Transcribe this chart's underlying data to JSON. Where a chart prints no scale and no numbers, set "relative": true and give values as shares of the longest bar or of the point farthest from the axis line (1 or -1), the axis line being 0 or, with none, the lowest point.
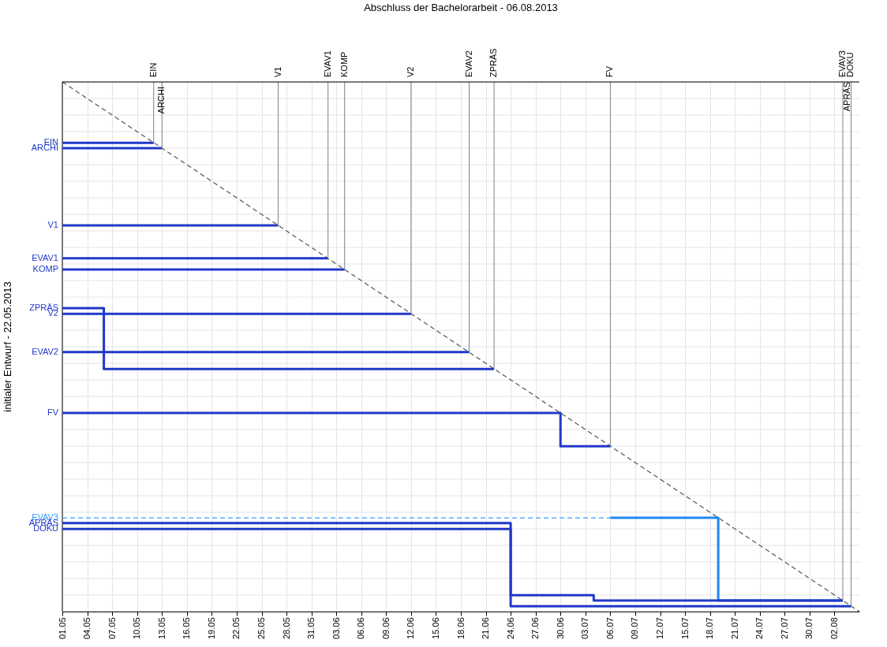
{
  "chart_data": {
    "type": "step",
    "title": "Abschluss der Bachelorarbeit - 06.08.2013",
    "ylabel": "initialer Entwurf - 22.05.2013",
    "relative": true,
    "xlim": [
      "2013-05-01",
      "2013-08-05"
    ],
    "xticks": [
      {
        "value": "2013-05-01",
        "label": "01.05"
      },
      {
        "value": "2013-05-04",
        "label": "04.05"
      },
      {
        "value": "2013-05-07",
        "label": "07.05"
      },
      {
        "value": "2013-05-10",
        "label": "10.05"
      },
      {
        "value": "2013-05-13",
        "label": "13.05"
      },
      {
        "value": "2013-05-16",
        "label": "16.05"
      },
      {
        "value": "2013-05-19",
        "label": "19.05"
      },
      {
        "value": "2013-05-22",
        "label": "22.05"
      },
      {
        "value": "2013-05-25",
        "label": "25.05"
      },
      {
        "value": "2013-05-28",
        "label": "28.05"
      },
      {
        "value": "2013-05-31",
        "label": "31.05"
      },
      {
        "value": "2013-06-03",
        "label": "03.06"
      },
      {
        "value": "2013-06-06",
        "label": "06.06"
      },
      {
        "value": "2013-06-09",
        "label": "09.06"
      },
      {
        "value": "2013-06-12",
        "label": "12.06"
      },
      {
        "value": "2013-06-15",
        "label": "15.06"
      },
      {
        "value": "2013-06-18",
        "label": "18.06"
      },
      {
        "value": "2013-06-21",
        "label": "21.06"
      },
      {
        "value": "2013-06-24",
        "label": "24.06"
      },
      {
        "value": "2013-06-27",
        "label": "27.06"
      },
      {
        "value": "2013-06-30",
        "label": "30.06"
      },
      {
        "value": "2013-07-03",
        "label": "03.07"
      },
      {
        "value": "2013-07-06",
        "label": "06.07"
      },
      {
        "value": "2013-07-09",
        "label": "09.07"
      },
      {
        "value": "2013-07-12",
        "label": "12.07"
      },
      {
        "value": "2013-07-15",
        "label": "15.07"
      },
      {
        "value": "2013-07-18",
        "label": "18.07"
      },
      {
        "value": "2013-07-21",
        "label": "21.07"
      },
      {
        "value": "2013-07-24",
        "label": "24.07"
      },
      {
        "value": "2013-07-27",
        "label": "27.07"
      },
      {
        "value": "2013-07-30",
        "label": "30.07"
      },
      {
        "value": "2013-08-02",
        "label": "02.08"
      }
    ],
    "ref_lines": [
      {
        "axis": "x",
        "value": "2013-05-12",
        "label": "EIN",
        "color": "#808080"
      },
      {
        "axis": "x",
        "value": "2013-05-13",
        "label": "ARCHI",
        "color": "#808080"
      },
      {
        "axis": "x",
        "value": "2013-05-27",
        "label": "V1",
        "color": "#808080"
      },
      {
        "axis": "x",
        "value": "2013-06-02",
        "label": "EVAV1",
        "color": "#808080"
      },
      {
        "axis": "x",
        "value": "2013-06-04",
        "label": "KOMP",
        "color": "#808080"
      },
      {
        "axis": "x",
        "value": "2013-06-12",
        "label": "V2",
        "color": "#808080"
      },
      {
        "axis": "x",
        "value": "2013-06-19",
        "label": "EVAV2",
        "color": "#808080"
      },
      {
        "axis": "x",
        "value": "2013-06-22",
        "label": "ZPRÄS",
        "color": "#808080"
      },
      {
        "axis": "x",
        "value": "2013-07-06",
        "label": "FV",
        "color": "#808080"
      },
      {
        "axis": "x",
        "value": "2013-08-03",
        "label": "EVAV3",
        "color": "#808080"
      },
      {
        "axis": "x",
        "value": "2013-08-04",
        "label": "DOKU",
        "color": "#808080"
      }
    ],
    "annotations": [
      {
        "text": "APRÄS",
        "x": "2013-08-03",
        "y": 1
      }
    ],
    "grid": true,
    "series": [
      {
        "type": "line",
        "line_style": "dashed",
        "color": "#555555",
        "x": [
          "2013-05-01",
          "2013-08-05"
        ],
        "values": [
          1,
          0
        ]
      },
      {
        "name": "EIN",
        "color": "#2038c8",
        "x": [
          "2013-05-01",
          "2013-05-12"
        ],
        "values": [
          0.885,
          0.885
        ]
      },
      {
        "name": "ARCHI",
        "color": "#2038c8",
        "x": [
          "2013-05-01",
          "2013-05-13"
        ],
        "values": [
          0.875,
          0.875
        ]
      },
      {
        "name": "V1",
        "color": "#2038c8",
        "x": [
          "2013-05-01",
          "2013-05-27"
        ],
        "values": [
          0.729,
          0.729
        ]
      },
      {
        "name": "EVAV1",
        "color": "#2038c8",
        "x": [
          "2013-05-01",
          "2013-06-02"
        ],
        "values": [
          0.667,
          0.667
        ]
      },
      {
        "name": "KOMP",
        "color": "#2038c8",
        "x": [
          "2013-05-01",
          "2013-06-04"
        ],
        "values": [
          0.646,
          0.646
        ]
      },
      {
        "name": "ZPRÄS",
        "color": "#2038c8",
        "x": [
          "2013-05-01",
          "2013-05-06",
          "2013-06-22"
        ],
        "values": [
          0.573,
          0.458,
          0.458
        ]
      },
      {
        "name": "V2",
        "color": "#2038c8",
        "x": [
          "2013-05-01",
          "2013-06-12"
        ],
        "values": [
          0.562,
          0.562
        ]
      },
      {
        "name": "EVAV2",
        "color": "#2038c8",
        "x": [
          "2013-05-01",
          "2013-06-19"
        ],
        "values": [
          0.49,
          0.49
        ]
      },
      {
        "name": "FV",
        "color": "#2038c8",
        "x": [
          "2013-05-01",
          "2013-06-30",
          "2013-07-06"
        ],
        "values": [
          0.375,
          0.312,
          0.312
        ]
      },
      {
        "name": "EVAV3",
        "line_style": "dashed",
        "color": "#3399ff",
        "x": [
          "2013-05-01",
          "2013-07-06"
        ],
        "values": [
          0.177,
          0.177
        ]
      },
      {
        "color": "#1e88f0",
        "x": [
          "2013-07-06",
          "2013-07-19",
          "2013-08-03"
        ],
        "values": [
          0.177,
          0.021,
          0.021
        ]
      },
      {
        "name": "APRÄS",
        "color": "#2038c8",
        "x": [
          "2013-05-01",
          "2013-06-24",
          "2013-07-04",
          "2013-08-03"
        ],
        "values": [
          0.167,
          0.031,
          0.021,
          0.021
        ]
      },
      {
        "name": "DOKU",
        "color": "#2038c8",
        "x": [
          "2013-05-01",
          "2013-06-24",
          "2013-08-04"
        ],
        "values": [
          0.156,
          0.01,
          0.01
        ]
      }
    ]
  }
}
